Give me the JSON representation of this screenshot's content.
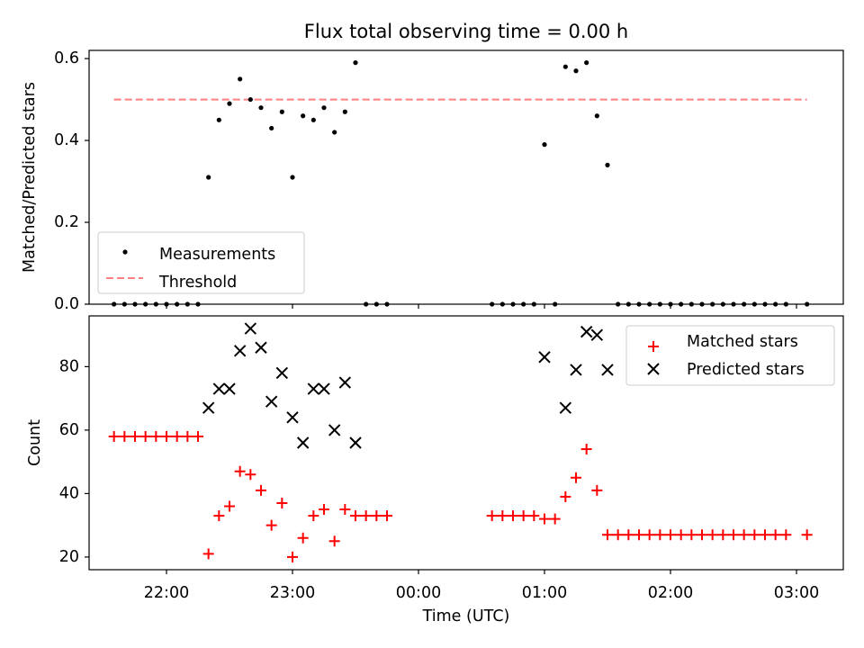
{
  "chart_data": [
    {
      "type": "scatter",
      "title": "Flux total observing time = 0.00 h",
      "xlabel": "",
      "ylabel": "Matched/Predicted stars",
      "ylim": [
        0,
        0.62
      ],
      "yticks": [
        0,
        0.2,
        0.4,
        0.6
      ],
      "ytick_labels": [
        "0.0",
        "0.2",
        "0.4",
        "0.6"
      ],
      "grid": false,
      "legend_position": "lower-left",
      "series": [
        {
          "name": "Measurements",
          "color": "#000000",
          "marker": "dot",
          "points": [
            [
              "21:35",
              0
            ],
            [
              "21:40",
              0
            ],
            [
              "21:45",
              0
            ],
            [
              "21:50",
              0
            ],
            [
              "21:55",
              0
            ],
            [
              "22:00",
              0
            ],
            [
              "22:05",
              0
            ],
            [
              "22:10",
              0
            ],
            [
              "22:15",
              0
            ],
            [
              "22:20",
              0.31
            ],
            [
              "22:25",
              0.45
            ],
            [
              "22:30",
              0.49
            ],
            [
              "22:35",
              0.55
            ],
            [
              "22:40",
              0.5
            ],
            [
              "22:45",
              0.48
            ],
            [
              "22:50",
              0.43
            ],
            [
              "22:55",
              0.47
            ],
            [
              "23:00",
              0.31
            ],
            [
              "23:05",
              0.46
            ],
            [
              "23:10",
              0.45
            ],
            [
              "23:15",
              0.48
            ],
            [
              "23:20",
              0.42
            ],
            [
              "23:25",
              0.47
            ],
            [
              "23:30",
              0.59
            ],
            [
              "23:35",
              0
            ],
            [
              "23:40",
              0
            ],
            [
              "23:45",
              0
            ],
            [
              "00:35",
              0
            ],
            [
              "00:40",
              0
            ],
            [
              "00:45",
              0
            ],
            [
              "00:50",
              0
            ],
            [
              "00:55",
              0
            ],
            [
              "01:00",
              0.39
            ],
            [
              "01:05",
              0
            ],
            [
              "01:10",
              0.58
            ],
            [
              "01:15",
              0.57
            ],
            [
              "01:20",
              0.59
            ],
            [
              "01:25",
              0.46
            ],
            [
              "01:30",
              0.34
            ],
            [
              "01:35",
              0
            ],
            [
              "01:40",
              0
            ],
            [
              "01:45",
              0
            ],
            [
              "01:50",
              0
            ],
            [
              "01:55",
              0
            ],
            [
              "02:00",
              0
            ],
            [
              "02:05",
              0
            ],
            [
              "02:10",
              0
            ],
            [
              "02:15",
              0
            ],
            [
              "02:20",
              0
            ],
            [
              "02:25",
              0
            ],
            [
              "02:30",
              0
            ],
            [
              "02:35",
              0
            ],
            [
              "02:40",
              0
            ],
            [
              "02:45",
              0
            ],
            [
              "02:50",
              0
            ],
            [
              "02:55",
              0
            ],
            [
              "03:05",
              0
            ]
          ]
        },
        {
          "name": "Threshold",
          "color": "#ff8080",
          "style": "dashed",
          "x": [
            "21:35",
            "03:05"
          ],
          "y": [
            0.5,
            0.5
          ]
        }
      ]
    },
    {
      "type": "scatter",
      "title": "",
      "xlabel": "Time (UTC)",
      "ylabel": "Count",
      "ylim": [
        16,
        96
      ],
      "yticks": [
        20,
        40,
        60,
        80
      ],
      "x_ticks": [
        "22:00",
        "23:00",
        "00:00",
        "01:00",
        "02:00",
        "03:00"
      ],
      "grid": false,
      "legend_position": "top-right",
      "series": [
        {
          "name": "Matched stars",
          "color": "#ff0000",
          "marker": "plus",
          "points": [
            [
              "21:35",
              58
            ],
            [
              "21:40",
              58
            ],
            [
              "21:45",
              58
            ],
            [
              "21:50",
              58
            ],
            [
              "21:55",
              58
            ],
            [
              "22:00",
              58
            ],
            [
              "22:05",
              58
            ],
            [
              "22:10",
              58
            ],
            [
              "22:15",
              58
            ],
            [
              "22:20",
              21
            ],
            [
              "22:25",
              33
            ],
            [
              "22:30",
              36
            ],
            [
              "22:35",
              47
            ],
            [
              "22:40",
              46
            ],
            [
              "22:45",
              41
            ],
            [
              "22:50",
              30
            ],
            [
              "22:55",
              37
            ],
            [
              "23:00",
              20
            ],
            [
              "23:05",
              26
            ],
            [
              "23:10",
              33
            ],
            [
              "23:15",
              35
            ],
            [
              "23:20",
              25
            ],
            [
              "23:25",
              35
            ],
            [
              "23:30",
              33
            ],
            [
              "23:35",
              33
            ],
            [
              "23:40",
              33
            ],
            [
              "23:45",
              33
            ],
            [
              "00:35",
              33
            ],
            [
              "00:40",
              33
            ],
            [
              "00:45",
              33
            ],
            [
              "00:50",
              33
            ],
            [
              "00:55",
              33
            ],
            [
              "01:00",
              32
            ],
            [
              "01:05",
              32
            ],
            [
              "01:10",
              39
            ],
            [
              "01:15",
              45
            ],
            [
              "01:20",
              54
            ],
            [
              "01:25",
              41
            ],
            [
              "01:30",
              27
            ],
            [
              "01:35",
              27
            ],
            [
              "01:40",
              27
            ],
            [
              "01:45",
              27
            ],
            [
              "01:50",
              27
            ],
            [
              "01:55",
              27
            ],
            [
              "02:00",
              27
            ],
            [
              "02:05",
              27
            ],
            [
              "02:10",
              27
            ],
            [
              "02:15",
              27
            ],
            [
              "02:20",
              27
            ],
            [
              "02:25",
              27
            ],
            [
              "02:30",
              27
            ],
            [
              "02:35",
              27
            ],
            [
              "02:40",
              27
            ],
            [
              "02:45",
              27
            ],
            [
              "02:50",
              27
            ],
            [
              "02:55",
              27
            ],
            [
              "03:05",
              27
            ]
          ]
        },
        {
          "name": "Predicted stars",
          "color": "#000000",
          "marker": "x",
          "points": [
            [
              "22:20",
              67
            ],
            [
              "22:25",
              73
            ],
            [
              "22:30",
              73
            ],
            [
              "22:35",
              85
            ],
            [
              "22:40",
              92
            ],
            [
              "22:45",
              86
            ],
            [
              "22:50",
              69
            ],
            [
              "22:55",
              78
            ],
            [
              "23:00",
              64
            ],
            [
              "23:05",
              56
            ],
            [
              "23:10",
              73
            ],
            [
              "23:15",
              73
            ],
            [
              "23:20",
              60
            ],
            [
              "23:25",
              75
            ],
            [
              "23:30",
              56
            ],
            [
              "01:00",
              83
            ],
            [
              "01:10",
              67
            ],
            [
              "01:15",
              79
            ],
            [
              "01:20",
              91
            ],
            [
              "01:25",
              90
            ],
            [
              "01:30",
              79
            ]
          ]
        }
      ]
    }
  ]
}
